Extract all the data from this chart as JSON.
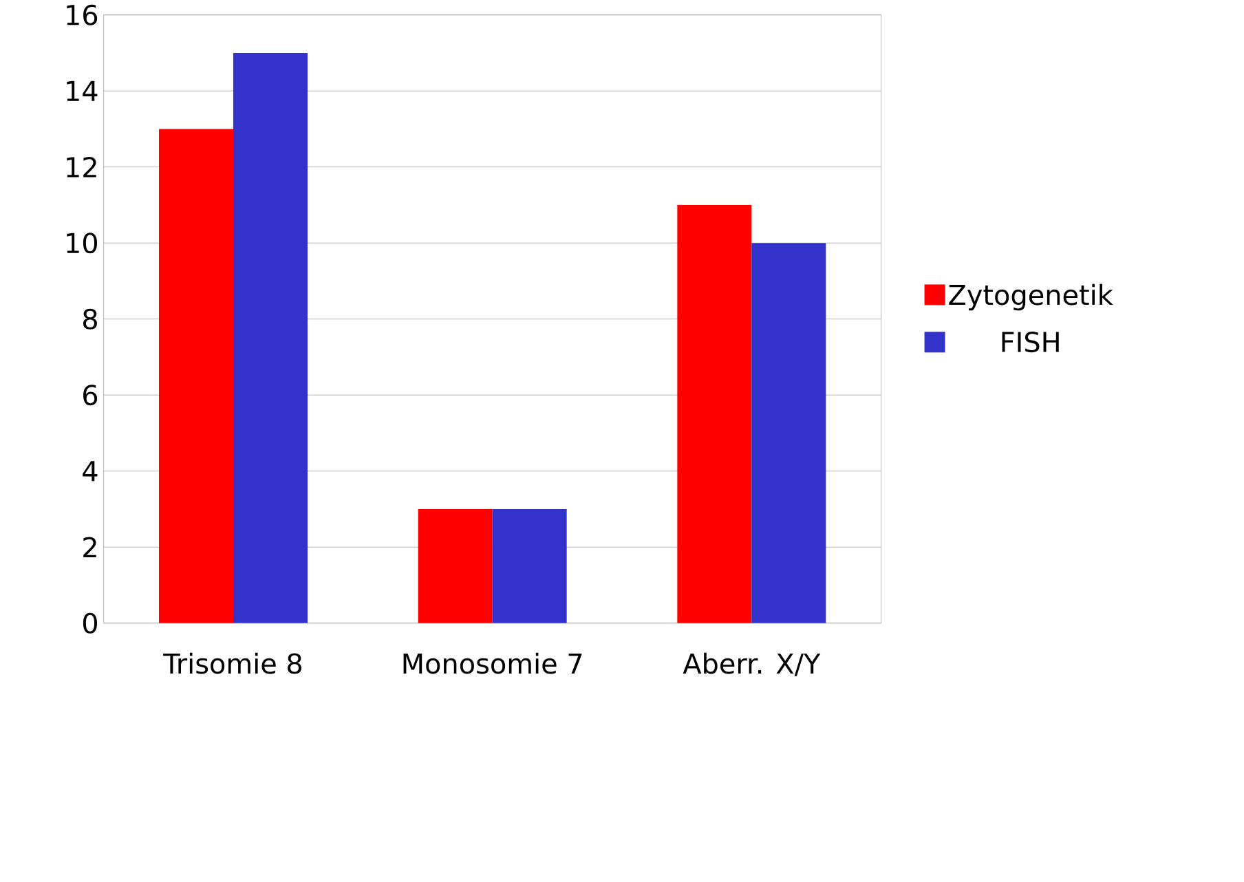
{
  "chart_data": {
    "type": "bar",
    "categories": [
      "Trisomie 8",
      "Monosomie 7",
      "Aberr. X/Y"
    ],
    "series": [
      {
        "name": "Zytogenetik",
        "color": "#ff0000",
        "values": [
          13,
          3,
          11
        ]
      },
      {
        "name": "FISH",
        "color": "#3333cc",
        "values": [
          15,
          3,
          10
        ]
      }
    ],
    "ylim": [
      0,
      16
    ],
    "yticks": [
      0,
      2,
      4,
      6,
      8,
      10,
      12,
      14,
      16
    ],
    "grid": "y",
    "legend": "right"
  }
}
